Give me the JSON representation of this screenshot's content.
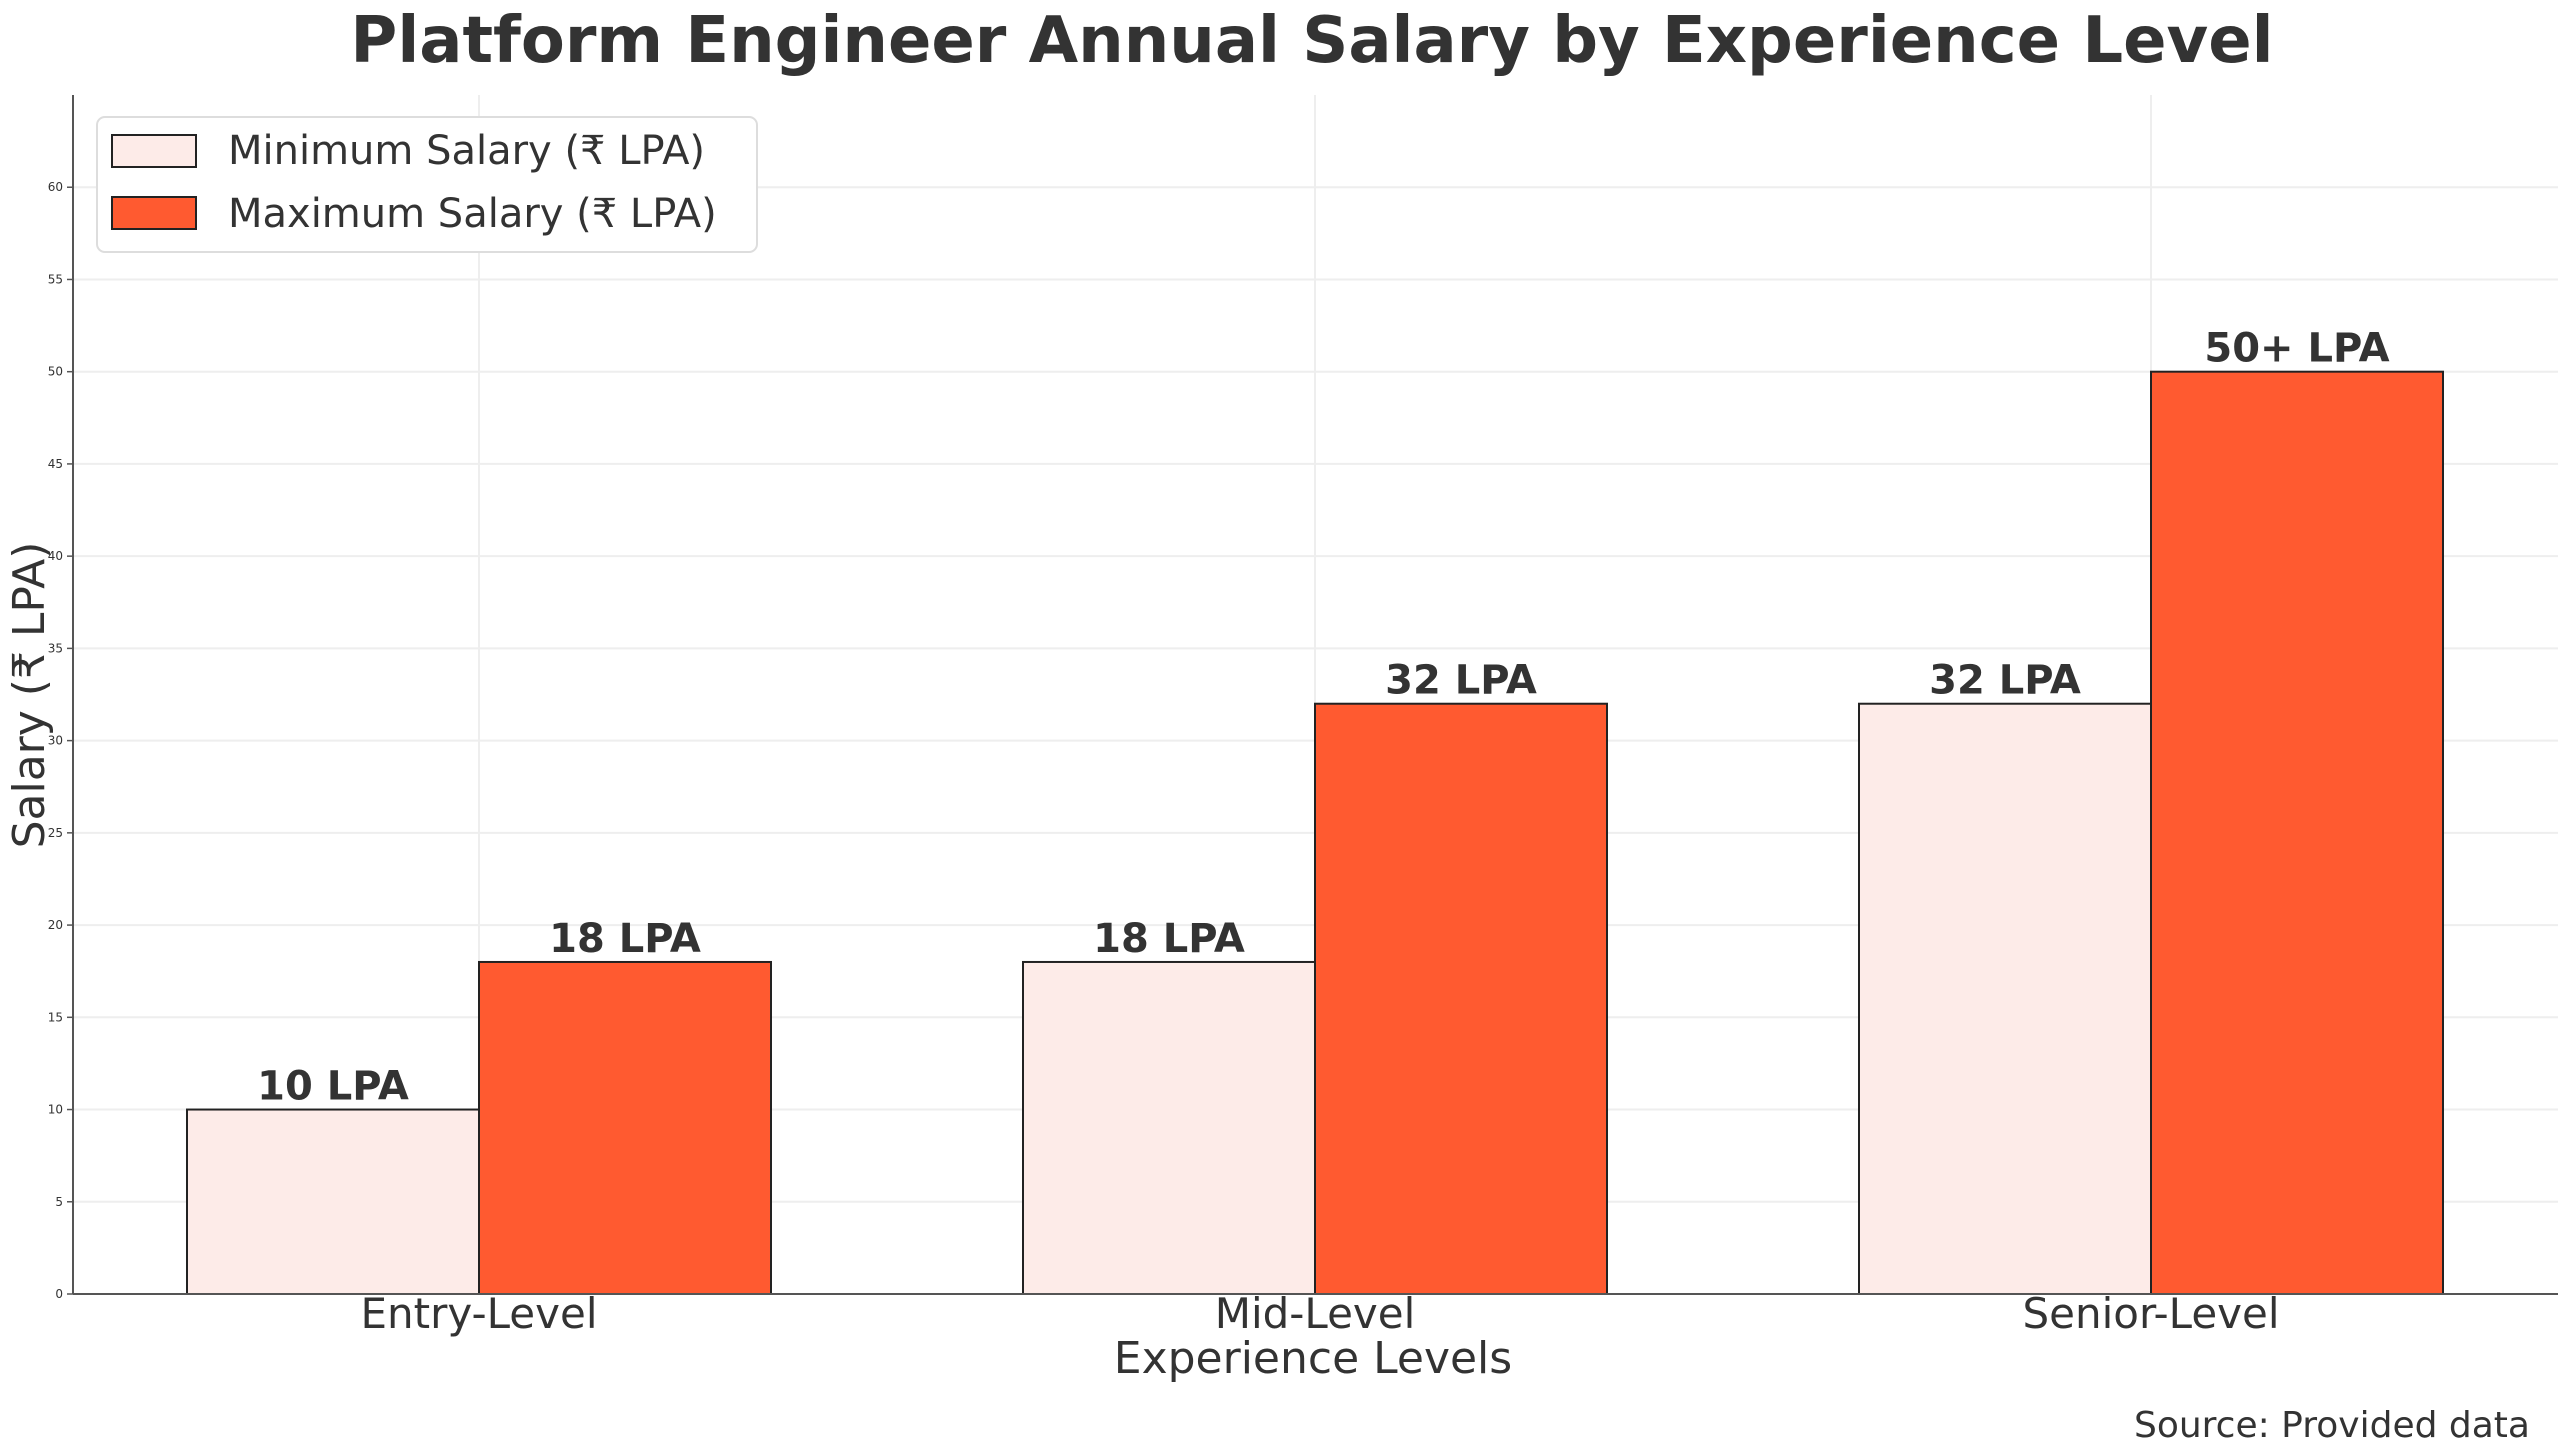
{
  "chart_data": {
    "type": "bar",
    "title": "Platform Engineer Annual Salary by Experience Level",
    "xlabel": "Experience Levels",
    "ylabel": "Salary (₹ LPA)",
    "ylim": [
      0,
      65
    ],
    "yticks": [
      0,
      5,
      10,
      15,
      20,
      25,
      30,
      35,
      40,
      45,
      50,
      55,
      60
    ],
    "grid": true,
    "legend_position": "top-left",
    "categories": [
      "Entry-Level",
      "Mid-Level",
      "Senior-Level"
    ],
    "series": [
      {
        "name": "Minimum Salary (₹ LPA)",
        "values": [
          10,
          18,
          32
        ],
        "labels": [
          "10 LPA",
          "18 LPA",
          "32 LPA"
        ],
        "color": "#fdebe8"
      },
      {
        "name": "Maximum Salary (₹ LPA)",
        "values": [
          18,
          32,
          50
        ],
        "labels": [
          "18 LPA",
          "32 LPA",
          "50+ LPA"
        ],
        "color": "#ff5a30"
      }
    ],
    "source_note": "Source: Provided data"
  },
  "colors": {
    "text": "#333333",
    "axis": "#555555",
    "grid": "#eeeeee",
    "bar_edge": "#222222"
  }
}
